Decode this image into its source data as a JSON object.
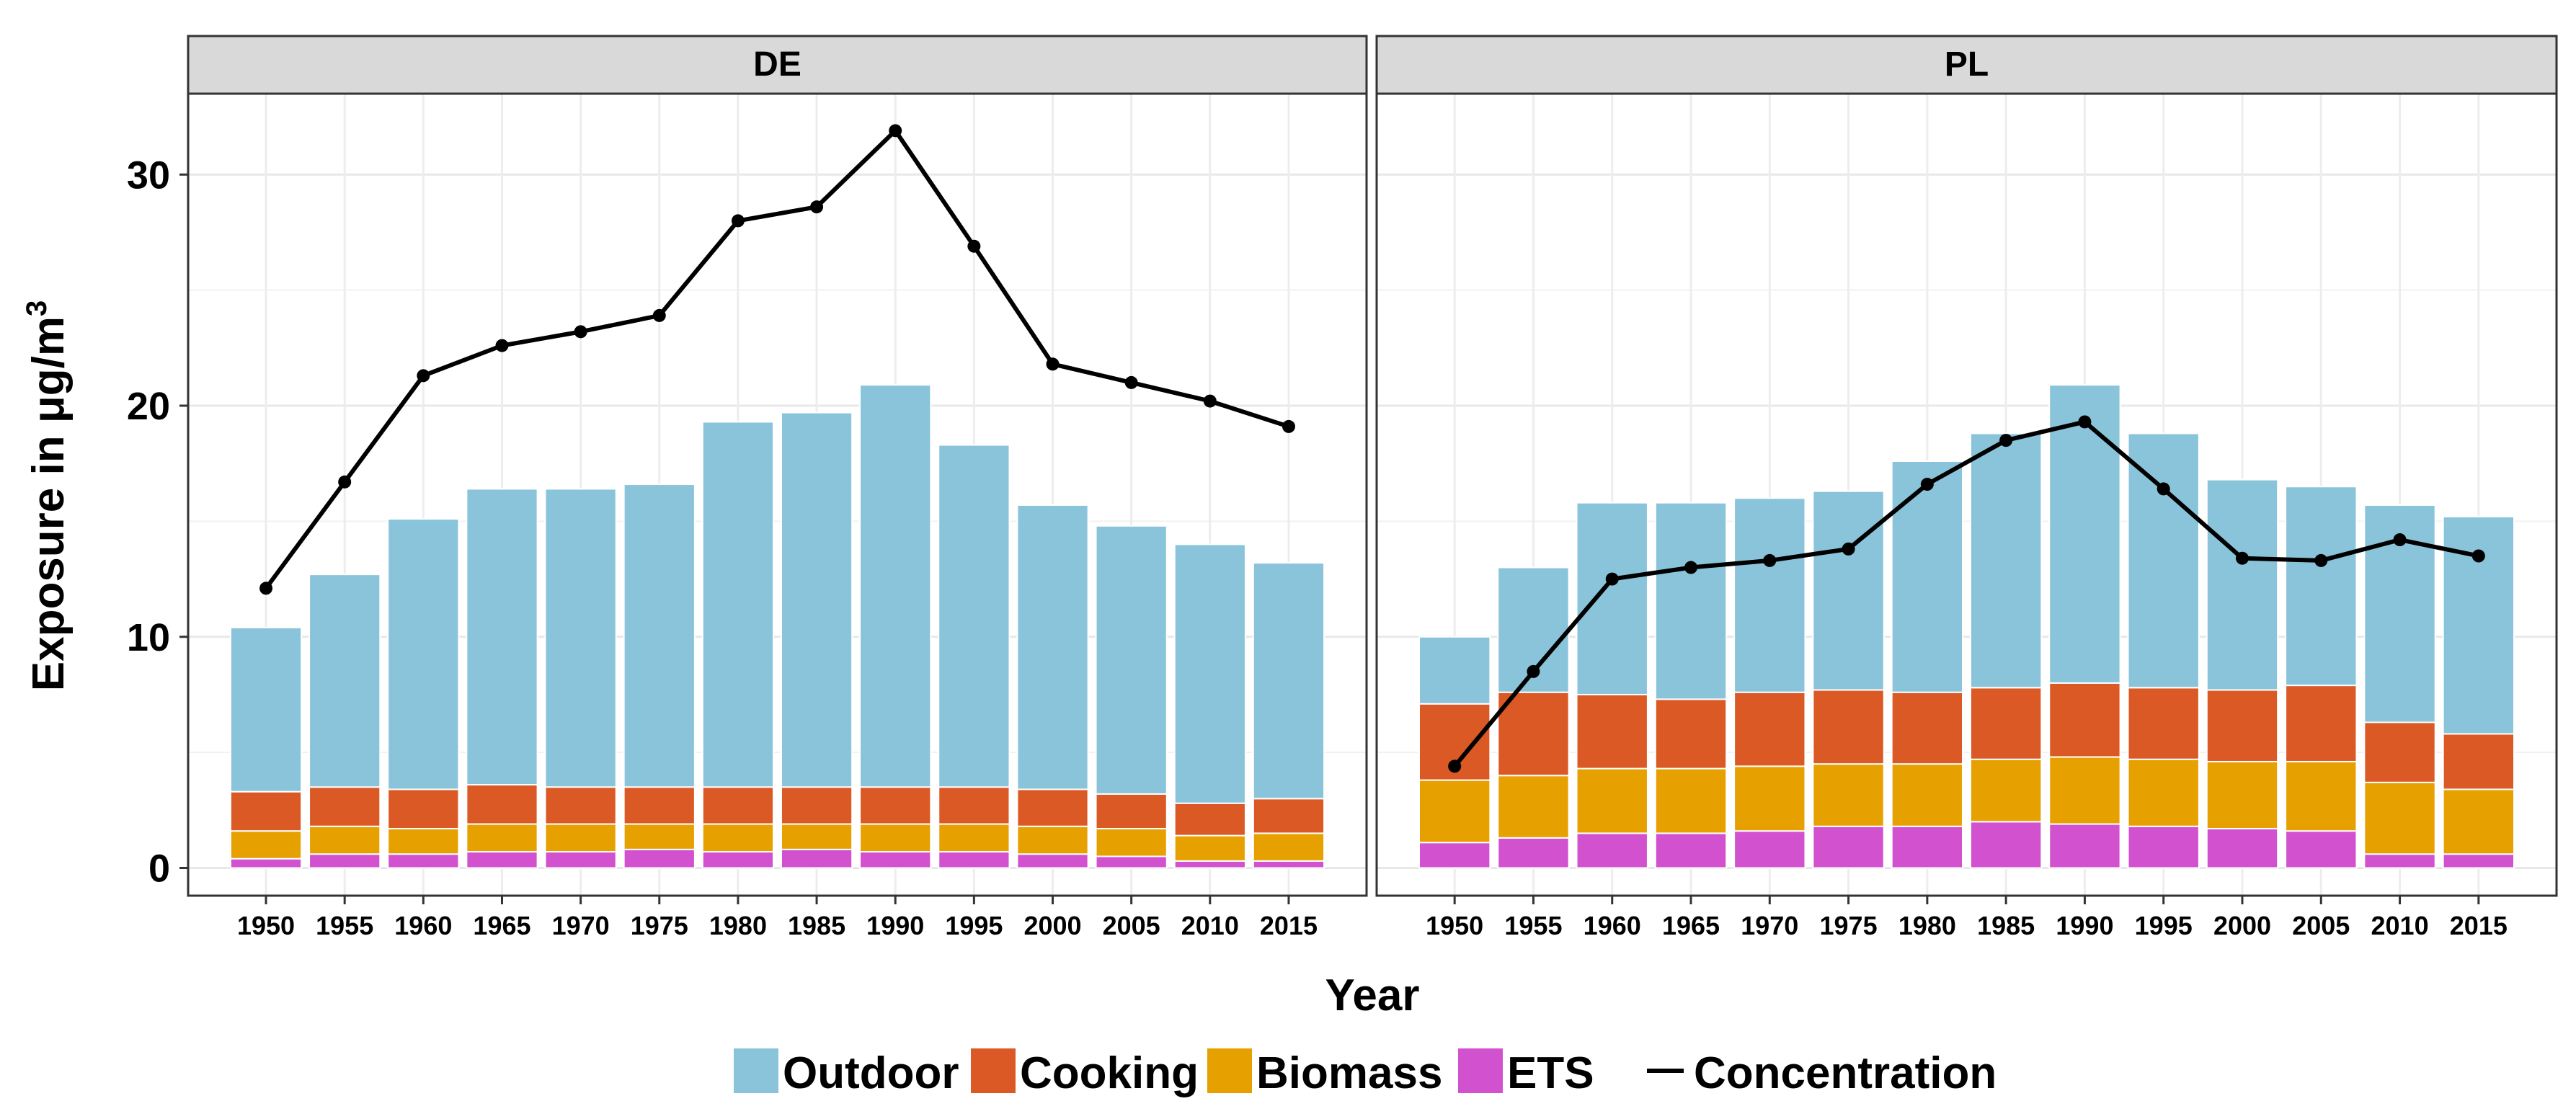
{
  "chart_data": {
    "type": "bar",
    "subtype": "stacked-bar-with-line",
    "facets": [
      "DE",
      "PL"
    ],
    "categories": [
      "1950",
      "1955",
      "1960",
      "1965",
      "1970",
      "1975",
      "1980",
      "1985",
      "1990",
      "1995",
      "2000",
      "2005",
      "2010",
      "2015"
    ],
    "ylabel": "Exposure in μg/m",
    "ylabel_superscript": "3",
    "xlabel": "Year",
    "ylim": [
      -1.2,
      33.5
    ],
    "yticks": [
      0,
      10,
      20,
      30
    ],
    "ytick_labels": [
      "0",
      "10",
      "20",
      "30"
    ],
    "grid": true,
    "legend_position": "bottom",
    "legend": [
      {
        "name": "Outdoor",
        "kind": "fill",
        "color": "#89C4DA"
      },
      {
        "name": "Cooking",
        "kind": "fill",
        "color": "#DB5924"
      },
      {
        "name": "Biomass",
        "kind": "fill",
        "color": "#E6A000"
      },
      {
        "name": "ETS",
        "kind": "fill",
        "color": "#D151CF"
      },
      {
        "name": "Concentration",
        "kind": "line",
        "color": "#000000"
      }
    ],
    "panels": [
      {
        "label": "DE",
        "series": [
          {
            "name": "ETS",
            "values": [
              0.4,
              0.6,
              0.6,
              0.7,
              0.7,
              0.8,
              0.7,
              0.8,
              0.7,
              0.7,
              0.6,
              0.5,
              0.3,
              0.3
            ]
          },
          {
            "name": "Biomass",
            "values": [
              1.2,
              1.2,
              1.1,
              1.2,
              1.2,
              1.1,
              1.2,
              1.1,
              1.2,
              1.2,
              1.2,
              1.2,
              1.1,
              1.2
            ]
          },
          {
            "name": "Cooking",
            "values": [
              1.7,
              1.7,
              1.7,
              1.7,
              1.6,
              1.6,
              1.6,
              1.6,
              1.6,
              1.6,
              1.6,
              1.5,
              1.4,
              1.5
            ]
          },
          {
            "name": "Outdoor",
            "values": [
              7.1,
              9.2,
              11.7,
              12.8,
              12.9,
              13.1,
              15.8,
              16.2,
              17.4,
              14.8,
              12.3,
              11.6,
              11.2,
              10.2
            ]
          }
        ],
        "concentration": [
          12.1,
          16.7,
          21.3,
          22.6,
          23.2,
          23.9,
          28.0,
          28.6,
          31.9,
          26.9,
          21.8,
          21.0,
          20.2,
          19.1
        ]
      },
      {
        "label": "PL",
        "series": [
          {
            "name": "ETS",
            "values": [
              1.1,
              1.3,
              1.5,
              1.5,
              1.6,
              1.8,
              1.8,
              2.0,
              1.9,
              1.8,
              1.7,
              1.6,
              0.6,
              0.6
            ]
          },
          {
            "name": "Biomass",
            "values": [
              2.7,
              2.7,
              2.8,
              2.8,
              2.8,
              2.7,
              2.7,
              2.7,
              2.9,
              2.9,
              2.9,
              3.0,
              3.1,
              2.8
            ]
          },
          {
            "name": "Cooking",
            "values": [
              3.3,
              3.6,
              3.2,
              3.0,
              3.2,
              3.2,
              3.1,
              3.1,
              3.2,
              3.1,
              3.1,
              3.3,
              2.6,
              2.4
            ]
          },
          {
            "name": "Outdoor",
            "values": [
              2.9,
              5.4,
              8.3,
              8.5,
              8.4,
              8.6,
              10.0,
              11.0,
              12.9,
              11.0,
              9.1,
              8.6,
              9.4,
              9.4
            ]
          }
        ],
        "concentration": [
          4.4,
          8.5,
          12.5,
          13.0,
          13.3,
          13.8,
          16.6,
          18.5,
          19.3,
          16.4,
          13.4,
          13.3,
          14.2,
          13.5
        ]
      }
    ]
  }
}
